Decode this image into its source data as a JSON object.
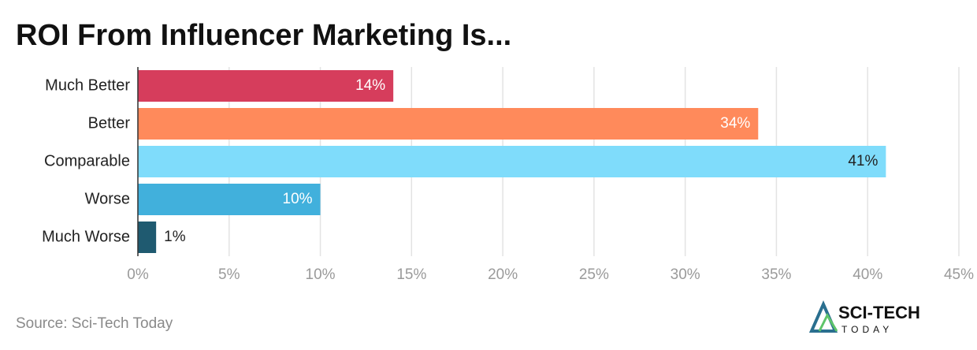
{
  "chart_data": {
    "type": "hbar",
    "title": "ROI From Influencer Marketing Is...",
    "categories": [
      "Much Better",
      "Better",
      "Comparable",
      "Worse",
      "Much Worse"
    ],
    "values": [
      14,
      34,
      41,
      10,
      1
    ],
    "value_labels": [
      "14%",
      "34%",
      "41%",
      "10%",
      "1%"
    ],
    "colors": [
      "#d63d5c",
      "#ff8a5b",
      "#7fdcfb",
      "#41b0dc",
      "#1f5a70"
    ],
    "xlim": [
      0,
      45
    ],
    "xticks": [
      {
        "value": 0,
        "label": "0%"
      },
      {
        "value": 5,
        "label": "5%"
      },
      {
        "value": 10,
        "label": "10%"
      },
      {
        "value": 15,
        "label": "15%"
      },
      {
        "value": 20,
        "label": "20%"
      },
      {
        "value": 25,
        "label": "25%"
      },
      {
        "value": 30,
        "label": "30%"
      },
      {
        "value": 35,
        "label": "35%"
      },
      {
        "value": 40,
        "label": "40%"
      },
      {
        "value": 45,
        "label": "45%"
      }
    ],
    "grid": true,
    "source": "Source: Sci-Tech Today",
    "logo": {
      "name": "SCI-TECH",
      "tagline": "TODAY"
    }
  }
}
